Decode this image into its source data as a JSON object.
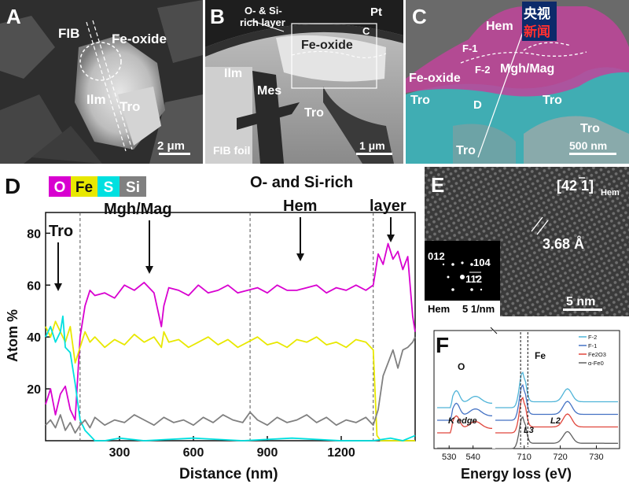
{
  "panel_a": {
    "letter": "A",
    "labels": {
      "fib": "FIB",
      "fe_oxide": "Fe-oxide",
      "ilm": "Ilm",
      "tro": "Tro"
    },
    "scale_bar": "2 μm"
  },
  "panel_b": {
    "letter": "B",
    "labels": {
      "layer_line1": "O- & Si-",
      "layer_line2": "rich layer",
      "pt": "Pt",
      "c_box": "C",
      "fe_oxide": "Fe-oxide",
      "ilm": "Ilm",
      "mes": "Mes",
      "tro": "Tro",
      "foil": "FIB foil"
    },
    "scale_bar": "1 μm"
  },
  "panel_c": {
    "letter": "C",
    "labels": {
      "hem": "Hem",
      "f1": "F-1",
      "f2": "F-2",
      "mgh_mag": "Mgh/Mag",
      "fe_oxide": "Fe-oxide",
      "tro_left": "Tro",
      "tro_right": "Tro",
      "tro_br": "Tro",
      "tro_bl": "Tro",
      "d_line": "D"
    },
    "scale_bar": "500 nm",
    "watermark_line1": "央视",
    "watermark_line2": "新闻",
    "colors": {
      "hem": "#c0449a",
      "tro": "#38b8bf"
    }
  },
  "panel_d": {
    "letter": "D",
    "annotations": {
      "tro": "Tro",
      "mgh_mag": "Mgh/Mag",
      "hem_line1": "O- and Si-rich",
      "hem_line2": "Hem",
      "layer": "layer"
    },
    "chart_data": {
      "type": "line",
      "xlabel": "Distance (nm)",
      "ylabel": "Atom %",
      "xlim": [
        0,
        1500
      ],
      "ylim": [
        0,
        88
      ],
      "xticks": [
        300,
        600,
        900,
        1200
      ],
      "yticks": [
        20,
        40,
        60,
        80
      ],
      "legend": [
        "O",
        "Fe",
        "S",
        "Si"
      ],
      "region_boundaries": [
        140,
        830,
        1330
      ],
      "series": [
        {
          "name": "O",
          "color": "#d800d0",
          "x": [
            0,
            20,
            40,
            60,
            80,
            100,
            120,
            140,
            160,
            180,
            200,
            240,
            280,
            320,
            360,
            400,
            440,
            470,
            480,
            500,
            540,
            580,
            620,
            660,
            700,
            740,
            780,
            820,
            860,
            900,
            940,
            980,
            1020,
            1060,
            1100,
            1140,
            1180,
            1220,
            1260,
            1300,
            1330,
            1350,
            1370,
            1390,
            1410,
            1430,
            1450,
            1470,
            1490,
            1500
          ],
          "y": [
            14,
            20,
            10,
            18,
            21,
            12,
            8,
            40,
            52,
            58,
            56,
            57,
            55,
            60,
            58,
            61,
            57,
            44,
            52,
            59,
            58,
            56,
            60,
            57,
            58,
            60,
            57,
            58,
            59,
            57,
            60,
            58,
            58,
            59,
            60,
            57,
            59,
            58,
            60,
            58,
            60,
            72,
            68,
            76,
            70,
            73,
            66,
            71,
            48,
            42
          ]
        },
        {
          "name": "Fe",
          "color": "#e8e800",
          "x": [
            0,
            20,
            40,
            60,
            80,
            100,
            120,
            140,
            160,
            180,
            200,
            240,
            280,
            320,
            360,
            400,
            440,
            470,
            480,
            500,
            540,
            580,
            620,
            660,
            700,
            740,
            780,
            820,
            860,
            900,
            940,
            980,
            1020,
            1060,
            1100,
            1140,
            1180,
            1220,
            1260,
            1300,
            1330,
            1345,
            1360,
            1500
          ],
          "y": [
            44,
            40,
            46,
            42,
            38,
            44,
            30,
            36,
            42,
            38,
            40,
            36,
            39,
            37,
            41,
            38,
            40,
            36,
            42,
            38,
            39,
            36,
            38,
            40,
            37,
            39,
            36,
            38,
            40,
            37,
            38,
            36,
            39,
            38,
            40,
            37,
            38,
            36,
            39,
            38,
            35,
            2,
            0,
            0
          ]
        },
        {
          "name": "S",
          "color": "#00e0e0",
          "x": [
            0,
            20,
            40,
            60,
            70,
            80,
            100,
            120,
            140,
            160,
            180,
            200,
            240,
            300,
            400,
            600,
            800,
            1000,
            1200,
            1330,
            1400,
            1450,
            1500
          ],
          "y": [
            40,
            44,
            38,
            42,
            48,
            36,
            34,
            22,
            8,
            4,
            2,
            0,
            0,
            1,
            0,
            1,
            0,
            1,
            0,
            0,
            1,
            0,
            2
          ]
        },
        {
          "name": "Si",
          "color": "#808080",
          "x": [
            0,
            20,
            40,
            60,
            80,
            100,
            120,
            140,
            160,
            180,
            200,
            240,
            280,
            320,
            360,
            400,
            440,
            480,
            520,
            560,
            600,
            640,
            680,
            720,
            760,
            800,
            830,
            860,
            900,
            940,
            980,
            1020,
            1060,
            1100,
            1140,
            1180,
            1220,
            1260,
            1300,
            1330,
            1350,
            1370,
            1390,
            1410,
            1430,
            1450,
            1470,
            1490,
            1500
          ],
          "y": [
            6,
            8,
            5,
            10,
            4,
            7,
            3,
            6,
            8,
            5,
            9,
            6,
            8,
            7,
            10,
            8,
            6,
            9,
            7,
            8,
            6,
            9,
            7,
            10,
            8,
            7,
            11,
            8,
            6,
            9,
            7,
            8,
            10,
            7,
            9,
            6,
            8,
            7,
            9,
            6,
            12,
            25,
            30,
            35,
            28,
            35,
            36,
            38,
            40
          ]
        }
      ]
    }
  },
  "panel_e": {
    "letter": "E",
    "zone_axis": "[42 1]",
    "zone_axis_sub": "Hem",
    "spacing": "3.68 Å",
    "scale_bar": "5 nm",
    "saed": {
      "labels": [
        "012",
        "104",
        "112"
      ],
      "phase": "Hem",
      "scale": "5 1/nm"
    }
  },
  "panel_f": {
    "letter": "F",
    "chart_data": {
      "type": "line",
      "xlabel": "Energy loss (eV)",
      "xticks": [
        530,
        540,
        710,
        720,
        730
      ],
      "legend": [
        "F-2",
        "F-1",
        "Fe2O3",
        "α-Fe0"
      ],
      "edge_labels": {
        "o": "O",
        "fe": "Fe",
        "k_edge": "K edge",
        "l3": "L3",
        "l2": "L2"
      },
      "series": [
        {
          "name": "F-2",
          "color": "#4fb4d8"
        },
        {
          "name": "F-1",
          "color": "#4472c4"
        },
        {
          "name": "Fe2O3",
          "color": "#e0463c"
        },
        {
          "name": "α-Fe0",
          "color": "#606060"
        }
      ]
    }
  }
}
